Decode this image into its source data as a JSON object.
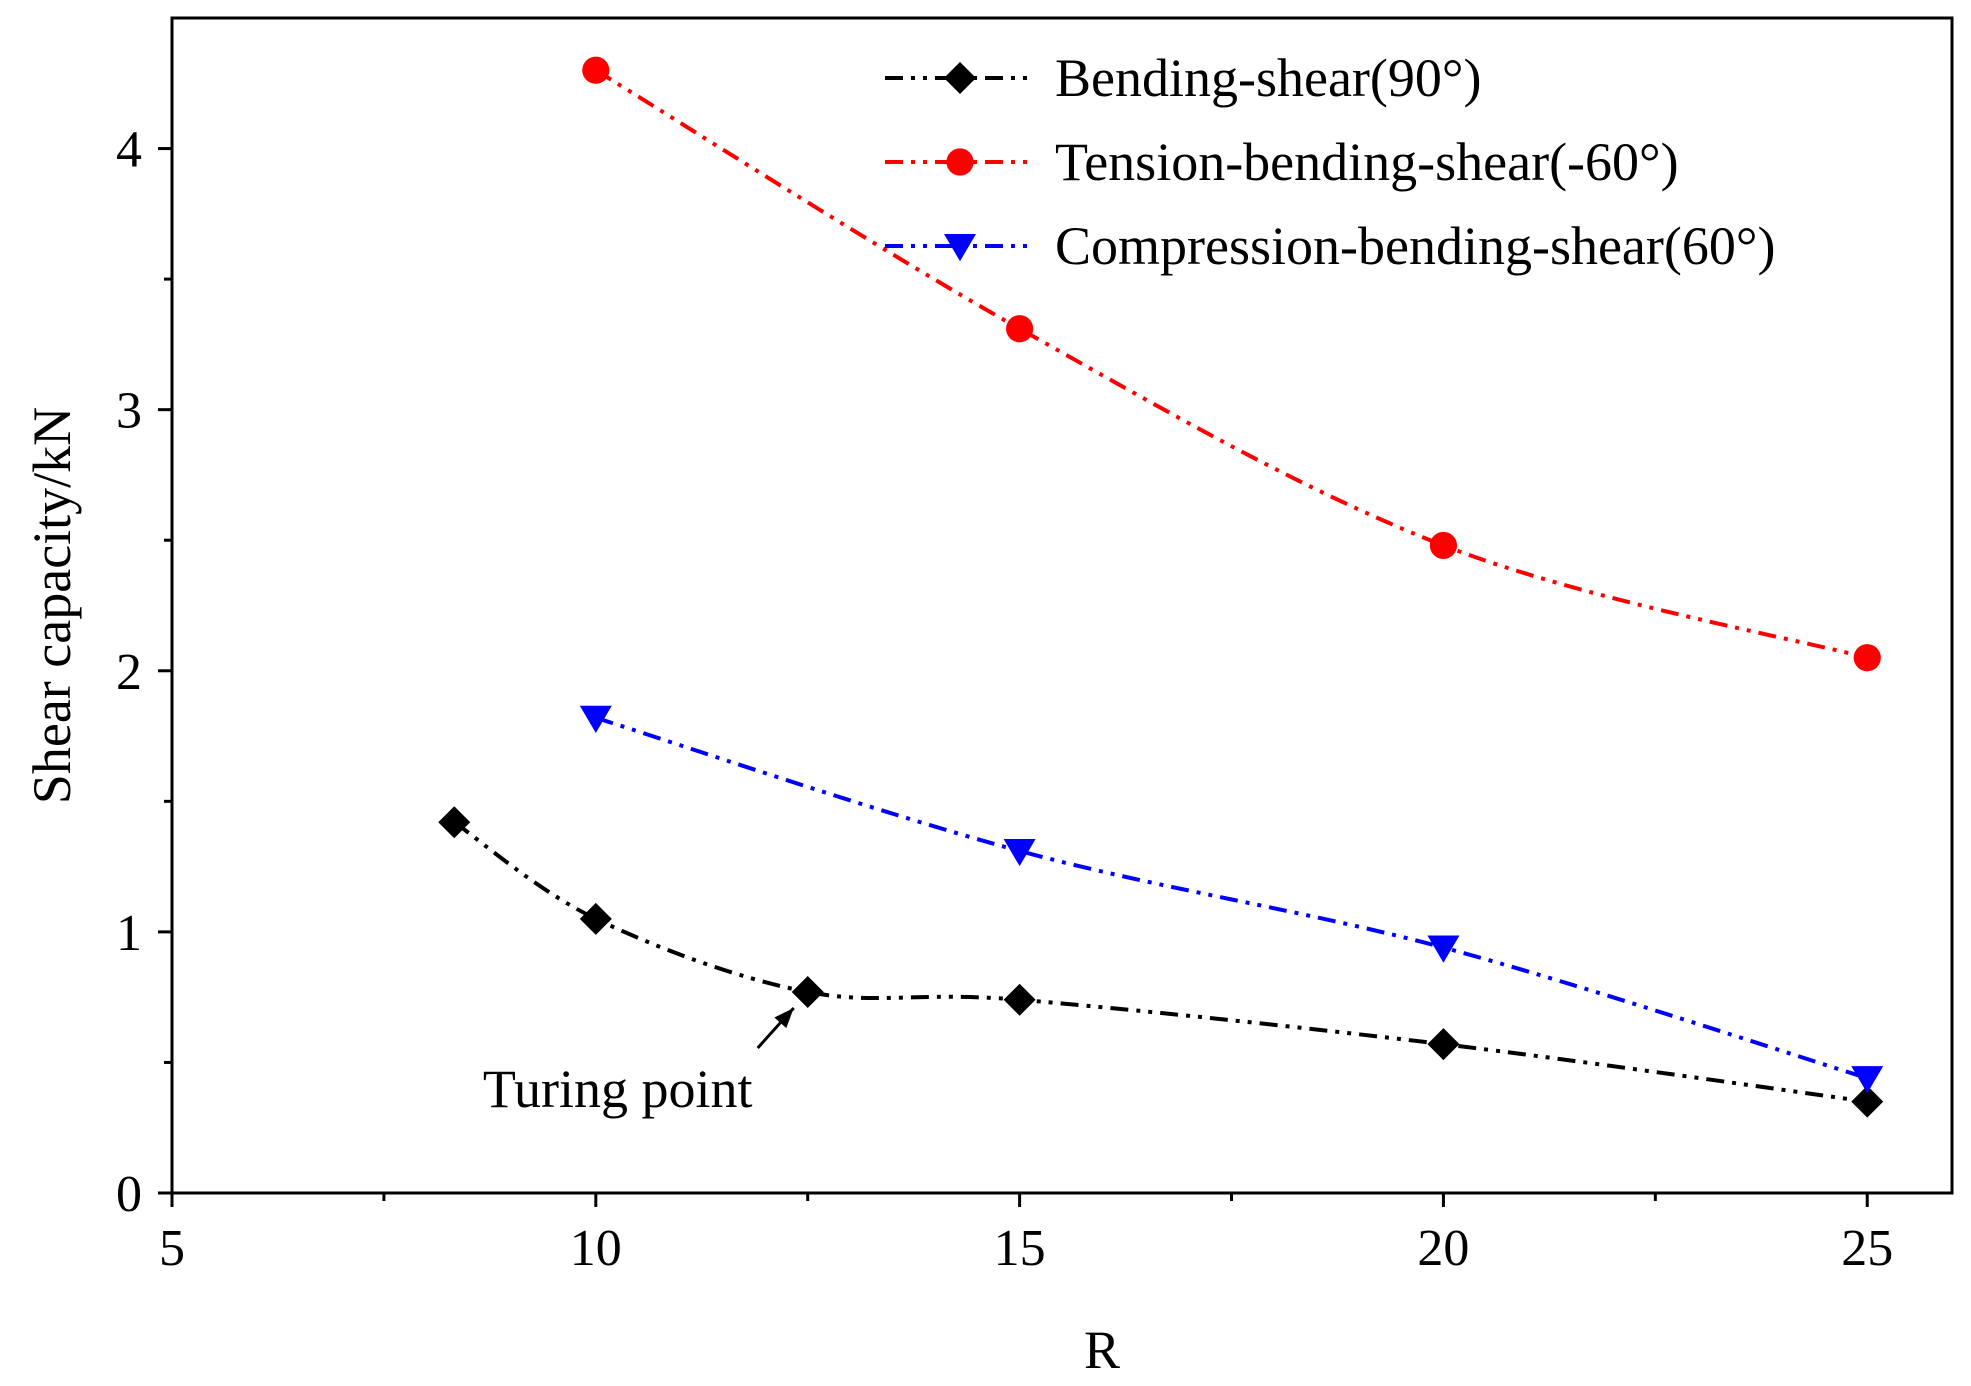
{
  "chart_data": {
    "type": "line",
    "title": "",
    "xlabel": "R",
    "ylabel": "Shear capacity/kN",
    "xlim": [
      5,
      26
    ],
    "ylim": [
      0,
      4.5
    ],
    "xticks": [
      5,
      10,
      15,
      20,
      25
    ],
    "xtick_labels": [
      "5",
      "10",
      "15",
      "20",
      "25"
    ],
    "xminor": [
      7.5,
      12.5,
      17.5,
      22.5
    ],
    "yticks": [
      0,
      1,
      2,
      3,
      4
    ],
    "ytick_labels": [
      "0",
      "1",
      "2",
      "3",
      "4"
    ],
    "yminor": [
      0.5,
      1.5,
      2.5,
      3.5
    ],
    "grid": false,
    "legend_position": "top-right",
    "series": [
      {
        "name": "Bending-shear(90°)",
        "color": "#000000",
        "marker": "diamond",
        "x": [
          8.33,
          10,
          12.5,
          15,
          20,
          25
        ],
        "y": [
          1.42,
          1.05,
          0.77,
          0.74,
          0.57,
          0.35
        ]
      },
      {
        "name": "Tension-bending-shear(-60°)",
        "color": "#ff0000",
        "marker": "circle",
        "x": [
          10,
          15,
          20,
          25
        ],
        "y": [
          4.3,
          3.31,
          2.48,
          2.05
        ]
      },
      {
        "name": "Compression-bending-shear(60°)",
        "color": "#0000ff",
        "marker": "triangle-down",
        "x": [
          10,
          15,
          20,
          25
        ],
        "y": [
          1.82,
          1.31,
          0.94,
          0.44
        ]
      }
    ],
    "annotations": [
      {
        "text": "Turing point",
        "target_x": 12.5,
        "target_y": 0.77
      }
    ]
  }
}
